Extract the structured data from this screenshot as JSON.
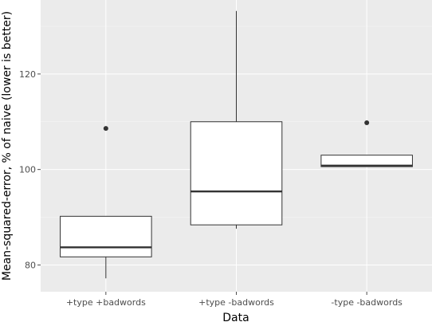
{
  "chart_data": {
    "type": "boxplot",
    "title": "",
    "xlabel": "Data",
    "ylabel": "Mean-squared-error, % of naive (lower is better)",
    "categories": [
      "+type +badwords",
      "+type -badwords",
      "-type -badwords"
    ],
    "boxes": [
      {
        "category": "+type +badwords",
        "q1": 81.7,
        "median": 83.7,
        "q3": 90.2,
        "whisker_low": 77.2,
        "whisker_high": 90.2,
        "outliers": [
          108.6
        ]
      },
      {
        "category": "+type -badwords",
        "q1": 88.4,
        "median": 95.4,
        "q3": 110.0,
        "whisker_low": 87.6,
        "whisker_high": 133.2,
        "outliers": []
      },
      {
        "category": "-type -badwords",
        "q1": 100.6,
        "median": 100.8,
        "q3": 103.0,
        "whisker_low": 100.6,
        "whisker_high": 103.0,
        "outliers": [
          109.8
        ]
      }
    ],
    "yticks": [
      80,
      100,
      120
    ],
    "ylim": [
      74.4,
      135.5
    ],
    "grid": true,
    "legend": "none"
  }
}
